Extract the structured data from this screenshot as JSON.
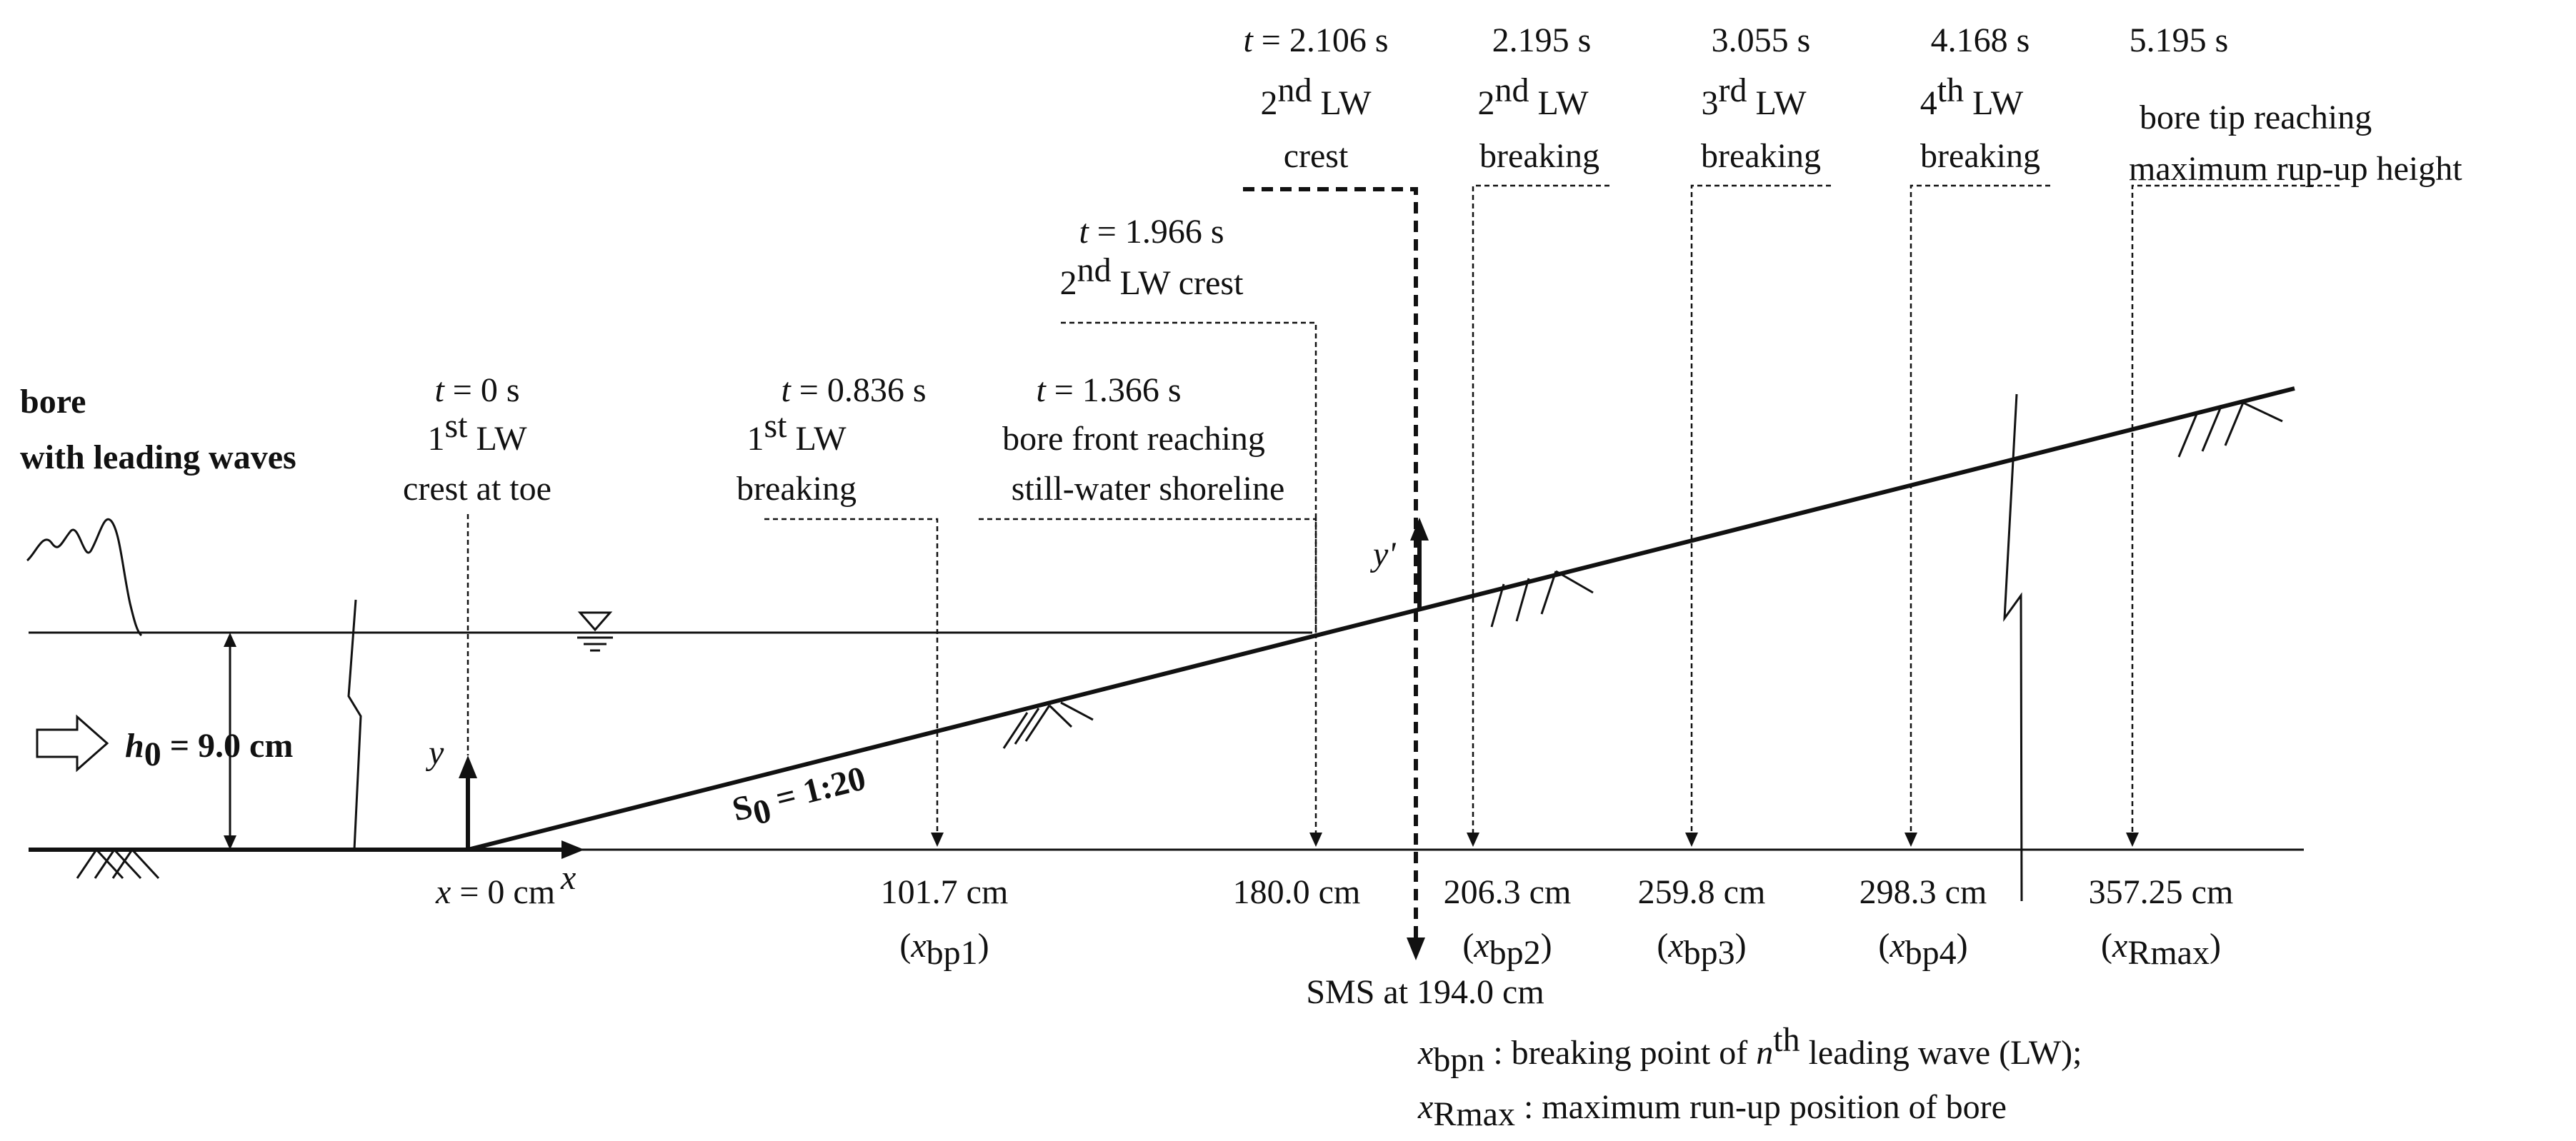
{
  "left_label": {
    "line1": "bore",
    "line2": "with leading waves"
  },
  "depth_label": {
    "h": "h",
    "sub": "0",
    "value": " = 9.0 cm"
  },
  "slope_label": {
    "s": "S",
    "sub": "0",
    "value": " = 1:20"
  },
  "origin_label": {
    "x": "x",
    "value": " = 0 cm"
  },
  "axis_labels": {
    "x": "x",
    "y": "y",
    "y_prime": "y'"
  },
  "events": [
    {
      "t": "t",
      "time": " = 0 s",
      "ord": "1",
      "sup": "st",
      "rest": " LW",
      "line3": "crest at toe"
    },
    {
      "t": "t",
      "time": " = 0.836 s",
      "ord": "1",
      "sup": "st",
      "rest": " LW",
      "line3": "breaking"
    },
    {
      "t": "t",
      "time": " = 1.366 s",
      "line2": "bore front reaching",
      "line3": "still-water shoreline"
    },
    {
      "t": "t",
      "time": " = 1.966 s",
      "ord": "2",
      "sup": "nd",
      "rest": " LW crest"
    },
    {
      "t": "t",
      "time": " = 2.106 s",
      "ord": "2",
      "sup": "nd",
      "rest": " LW",
      "line3": "crest"
    },
    {
      "time": "2.195 s",
      "ord": "2",
      "sup": "nd",
      "rest": " LW",
      "line3": "breaking"
    },
    {
      "time": "3.055 s",
      "ord": "3",
      "sup": "rd",
      "rest": " LW",
      "line3": "breaking"
    },
    {
      "time": "4.168 s",
      "ord": "4",
      "sup": "th",
      "rest": " LW",
      "line3": "breaking"
    },
    {
      "time": "5.195 s",
      "line2": "bore tip reaching",
      "line3": "maximum rup-up height"
    }
  ],
  "positions": [
    {
      "value": "101.7 cm",
      "x": "x",
      "sub": "bp1"
    },
    {
      "value": "180.0 cm"
    },
    {
      "value": "206.3 cm",
      "x": "x",
      "sub": "bp2"
    },
    {
      "value": "259.8 cm",
      "x": "x",
      "sub": "bp3"
    },
    {
      "value": "298.3 cm",
      "x": "x",
      "sub": "bp4"
    },
    {
      "value": "357.25 cm",
      "x": "x",
      "sub": "Rmax"
    }
  ],
  "sms_label": "SMS at 194.0 cm",
  "legend": [
    {
      "x": "x",
      "sub": "bpn",
      "text1": " : breaking point of ",
      "n": "n",
      "sup": "th",
      "text2": " leading wave (LW);"
    },
    {
      "x": "x",
      "sub": "Rmax",
      "text1": " : maximum run-up position of bore"
    }
  ]
}
